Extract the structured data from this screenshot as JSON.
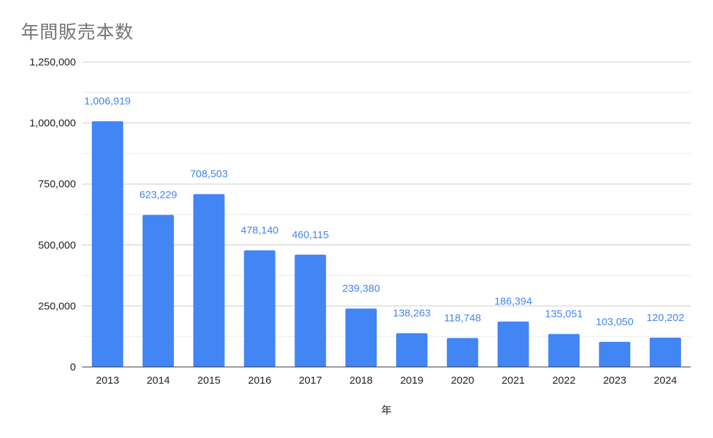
{
  "title": "年間販売本数",
  "chart_data": {
    "type": "bar",
    "title": "年間販売本数",
    "xlabel": "年",
    "ylabel": "",
    "categories": [
      "2013",
      "2014",
      "2015",
      "2016",
      "2017",
      "2018",
      "2019",
      "2020",
      "2021",
      "2022",
      "2023",
      "2024"
    ],
    "values": [
      1006919,
      623229,
      708503,
      478140,
      460115,
      239380,
      138263,
      118748,
      186394,
      135051,
      103050,
      120202
    ],
    "data_labels": [
      "1,006,919",
      "623,229",
      "708,503",
      "478,140",
      "460,115",
      "239,380",
      "138,263",
      "118,748",
      "186,394",
      "135,051",
      "103,050",
      "120,202"
    ],
    "ylim": [
      0,
      1250000
    ],
    "yticks": [
      0,
      250000,
      500000,
      750000,
      1000000,
      1250000
    ],
    "ytick_labels": [
      "0",
      "250,000",
      "500,000",
      "750,000",
      "1,000,000",
      "1,250,000"
    ],
    "grid": true,
    "legend": "none",
    "bar_color": "#4285f4"
  }
}
